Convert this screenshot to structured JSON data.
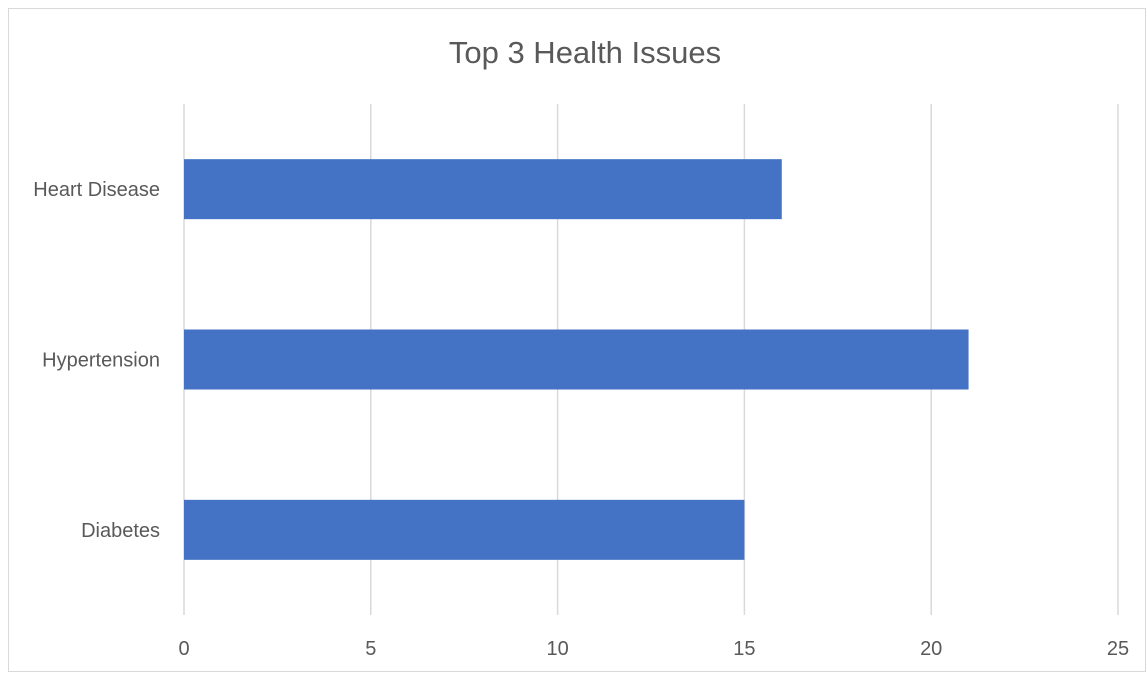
{
  "chart_data": {
    "type": "bar",
    "orientation": "horizontal",
    "title": "Top 3 Health Issues",
    "categories": [
      "Heart Disease",
      "Hypertension",
      "Diabetes"
    ],
    "values": [
      16,
      21,
      15
    ],
    "xlim": [
      0,
      25
    ],
    "xticks": [
      "0",
      "5",
      "10",
      "15",
      "20",
      "25"
    ],
    "xlabel": "",
    "ylabel": "",
    "grid": "vertical",
    "legend": "none",
    "bar_color": "#4472c4"
  }
}
